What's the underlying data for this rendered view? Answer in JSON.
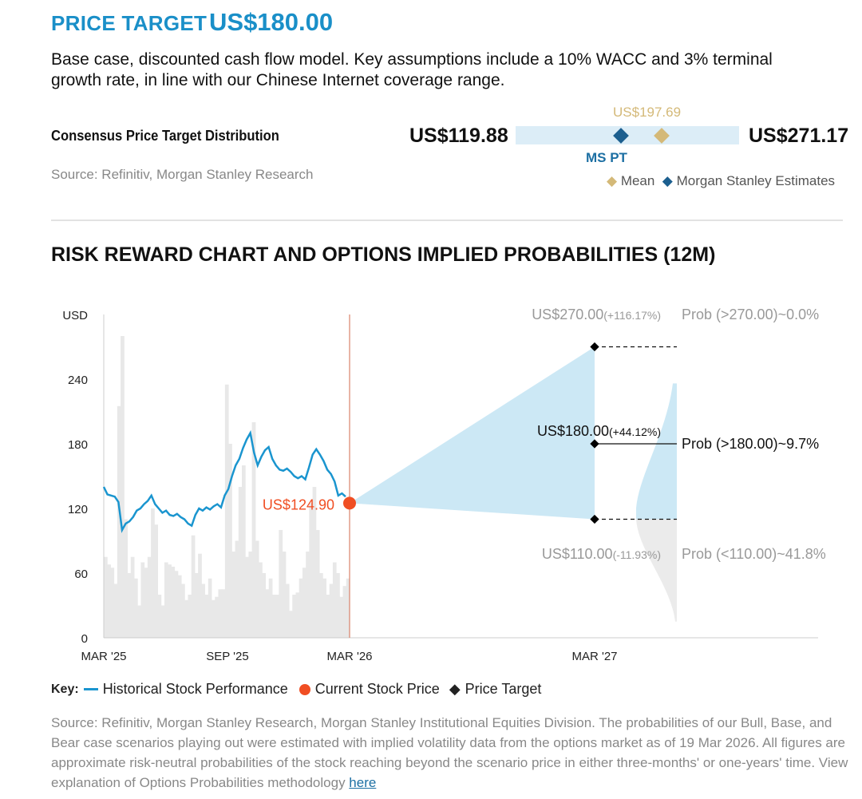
{
  "header": {
    "price_target_label": "PRICE TARGET",
    "price_target_value": "US$180.00",
    "description": "Base case, discounted cash flow model. Key assumptions include a 10% WACC and 3% terminal growth rate, in line with our Chinese Internet coverage range."
  },
  "consensus": {
    "title": "Consensus Price Target Distribution",
    "source": "Source: Refinitiv, Morgan Stanley Research",
    "low": "US$119.88",
    "high": "US$271.17",
    "mean_value": "US$197.69",
    "ms_pt_label": "MS PT",
    "mean_num": 197.69,
    "ms_pt_num": 180.0,
    "low_num": 119.88,
    "high_num": 271.17,
    "legend": {
      "mean": "Mean",
      "ms": "Morgan Stanley Estimates"
    },
    "colors": {
      "mean": "#d4b978",
      "ms": "#1c5f8f",
      "bar": "#dcedf7"
    }
  },
  "section_title": "RISK REWARD CHART AND OPTIONS IMPLIED PROBABILITIES (12M)",
  "chart_data": {
    "type": "line",
    "ylabel": "USD",
    "ylim": [
      0,
      300
    ],
    "yticks": [
      0,
      60,
      120,
      180,
      240
    ],
    "xticks": [
      "MAR '25",
      "SEP '25",
      "MAR '26",
      "MAR '27"
    ],
    "grid": false,
    "price": [
      140,
      133,
      132,
      131,
      126,
      100,
      106,
      108,
      112,
      118,
      120,
      124,
      127,
      132,
      124,
      120,
      116,
      118,
      114,
      113,
      115,
      112,
      110,
      106,
      104,
      114,
      120,
      118,
      121,
      119,
      122,
      124,
      121,
      132,
      138,
      150,
      160,
      166,
      176,
      184,
      190,
      172,
      160,
      168,
      174,
      177,
      166,
      160,
      156,
      155,
      157,
      154,
      150,
      148,
      150,
      147,
      158,
      170,
      175,
      170,
      164,
      156,
      152,
      145,
      132,
      134,
      131
    ],
    "volume": [
      75,
      68,
      65,
      50,
      215,
      280,
      110,
      60,
      75,
      55,
      30,
      70,
      65,
      75,
      120,
      105,
      40,
      30,
      70,
      68,
      66,
      62,
      58,
      50,
      35,
      40,
      95,
      60,
      78,
      50,
      40,
      55,
      35,
      38,
      45,
      45,
      235,
      180,
      80,
      90,
      140,
      160,
      75,
      80,
      200,
      90,
      70,
      60,
      45,
      55,
      40,
      40,
      100,
      80,
      50,
      25,
      40,
      42,
      55,
      65,
      80,
      125,
      140,
      100,
      60,
      55,
      40,
      50,
      70,
      60,
      38,
      48,
      55
    ],
    "current_price": {
      "label": "US$124.90",
      "value": 124.9
    },
    "scenarios": [
      {
        "name": "bull",
        "value": 270,
        "label": "US$270.00",
        "change": "(+116.17%)",
        "prob": "Prob (>270.00)~0.0%"
      },
      {
        "name": "base",
        "value": 180,
        "label": "US$180.00",
        "change": "(+44.12%)",
        "prob": "Prob (>180.00)~9.7%"
      },
      {
        "name": "bear",
        "value": 110,
        "label": "US$110.00",
        "change": "(-11.93%)",
        "prob": "Prob (<110.00)~41.8%"
      }
    ],
    "colors": {
      "line": "#1a95cf",
      "current": "#f04e23",
      "cone": "#cce8f5",
      "volume": "#e8e8e8",
      "divider": "#d9826a"
    }
  },
  "key": {
    "label": "Key:",
    "historical": "Historical Stock Performance",
    "current": "Current Stock Price",
    "target": "Price Target"
  },
  "footer": {
    "source": "Source: Refinitiv, Morgan Stanley Research, Morgan Stanley Institutional Equities Division. The probabilities of our Bull, Base, and Bear case scenarios playing out were estimated with implied volatility data from the options market as of 19 Mar 2026. All figures are approximate risk-neutral probabilities of the stock reaching beyond the scenario price in either three-months' or one-years' time. View explanation of Options Probabilities methodology ",
    "link": "here"
  }
}
